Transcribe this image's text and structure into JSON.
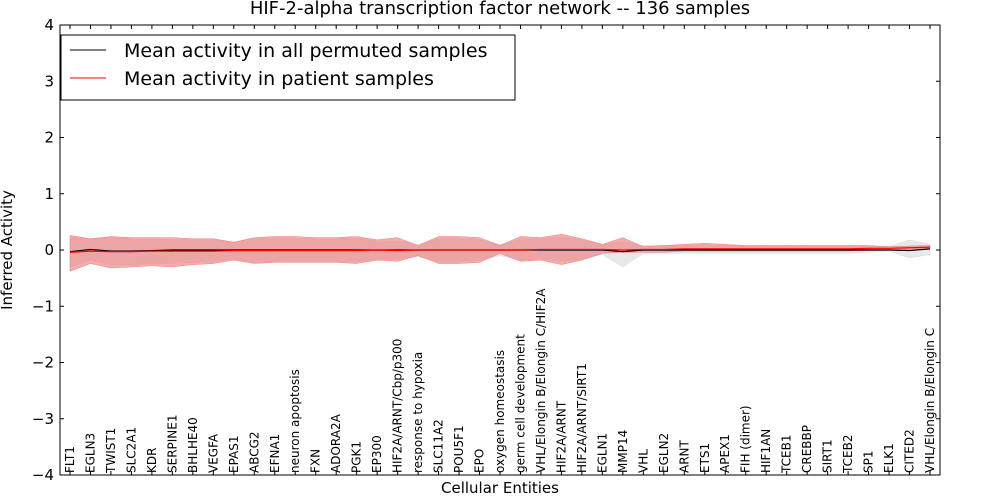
{
  "chart_data": {
    "type": "line",
    "title": "HIF-2-alpha transcription factor network -- 136 samples",
    "xlabel": "Cellular Entities",
    "ylabel": "Inferred Activity",
    "ylim": [
      -4,
      4
    ],
    "yticks": [
      4,
      3,
      2,
      1,
      0,
      -1,
      -2,
      -3,
      -4
    ],
    "ytick_labels": [
      "4",
      "3",
      "2",
      "1",
      "0",
      "−1",
      "−2",
      "−3",
      "−4"
    ],
    "grid": false,
    "legend_position": "top-left",
    "categories": [
      "FLT1",
      "EGLN3",
      "TWIST1",
      "SLC2A1",
      "KDR",
      "SERPINE1",
      "BHLHE40",
      "VEGFA",
      "EPAS1",
      "ABCG2",
      "EFNA1",
      "neuron apoptosis",
      "FXN",
      "ADORA2A",
      "PGK1",
      "EP300",
      "HIF2A/ARNT/Cbp/p300",
      "response to hypoxia",
      "SLC11A2",
      "POU5F1",
      "EPO",
      "oxygen homeostasis",
      "germ cell development",
      "VHL/Elongin B/Elongin C/HIF2A",
      "HIF2A/ARNT",
      "HIF2A/ARNT/SIRT1",
      "EGLN1",
      "MMP14",
      "VHL",
      "EGLN2",
      "ARNT",
      "ETS1",
      "APEX1",
      "FIH (dimer)",
      "HIF1AN",
      "TCEB1",
      "CREBBP",
      "SIRT1",
      "TCEB2",
      "SP1",
      "ELK1",
      "CITED2",
      "VHL/Elongin B/Elongin C"
    ],
    "series": [
      {
        "name": "Mean activity in all permuted samples",
        "color": "#000000",
        "band_color": "#d9d9d9",
        "values": [
          -0.03,
          0.01,
          -0.02,
          -0.02,
          -0.01,
          0.0,
          0.0,
          0.0,
          0.0,
          0.0,
          0.0,
          0.0,
          0.0,
          0.0,
          0.0,
          0.0,
          0.0,
          0.0,
          0.0,
          0.0,
          0.0,
          0.0,
          0.0,
          0.0,
          0.0,
          0.0,
          0.0,
          -0.03,
          0.0,
          0.0,
          0.0,
          0.0,
          0.0,
          0.0,
          0.0,
          0.0,
          0.0,
          0.0,
          0.0,
          0.0,
          0.0,
          -0.01,
          0.02
        ],
        "lower": [
          -0.3,
          -0.18,
          -0.26,
          -0.26,
          -0.24,
          -0.24,
          -0.22,
          -0.2,
          -0.16,
          -0.22,
          -0.2,
          -0.2,
          -0.2,
          -0.2,
          -0.2,
          -0.16,
          -0.16,
          -0.12,
          -0.2,
          -0.2,
          -0.18,
          -0.1,
          -0.18,
          -0.16,
          -0.2,
          -0.16,
          -0.08,
          -0.3,
          -0.06,
          -0.06,
          -0.06,
          -0.06,
          -0.06,
          -0.06,
          -0.06,
          -0.06,
          -0.06,
          -0.06,
          -0.06,
          -0.04,
          -0.02,
          -0.14,
          -0.08
        ],
        "upper": [
          0.22,
          0.2,
          0.22,
          0.2,
          0.2,
          0.18,
          0.18,
          0.18,
          0.14,
          0.2,
          0.2,
          0.2,
          0.2,
          0.2,
          0.2,
          0.16,
          0.16,
          0.1,
          0.2,
          0.2,
          0.18,
          0.1,
          0.18,
          0.2,
          0.22,
          0.18,
          0.1,
          0.14,
          0.08,
          0.08,
          0.08,
          0.08,
          0.08,
          0.08,
          0.08,
          0.08,
          0.08,
          0.08,
          0.08,
          0.06,
          0.06,
          0.18,
          0.1
        ]
      },
      {
        "name": "Mean activity in patient samples",
        "color": "#ff0000",
        "band_color": "#f08080",
        "values": [
          -0.04,
          -0.02,
          -0.03,
          -0.03,
          -0.02,
          -0.02,
          -0.02,
          -0.02,
          -0.01,
          -0.01,
          -0.01,
          -0.01,
          -0.01,
          -0.01,
          -0.01,
          0.0,
          -0.01,
          0.0,
          0.0,
          0.0,
          0.0,
          0.0,
          0.0,
          0.01,
          0.01,
          0.01,
          0.01,
          0.0,
          0.01,
          0.01,
          0.02,
          0.02,
          0.02,
          0.02,
          0.02,
          0.02,
          0.02,
          0.02,
          0.02,
          0.03,
          0.03,
          0.04,
          0.05
        ],
        "lower": [
          -0.38,
          -0.24,
          -0.32,
          -0.3,
          -0.28,
          -0.3,
          -0.26,
          -0.24,
          -0.18,
          -0.24,
          -0.22,
          -0.22,
          -0.22,
          -0.22,
          -0.24,
          -0.18,
          -0.2,
          -0.1,
          -0.24,
          -0.24,
          -0.22,
          -0.06,
          -0.2,
          -0.18,
          -0.26,
          -0.18,
          -0.06,
          -0.04,
          -0.04,
          -0.04,
          -0.02,
          -0.02,
          -0.02,
          -0.02,
          -0.02,
          -0.02,
          -0.02,
          -0.02,
          -0.02,
          -0.01,
          0.0,
          0.01,
          0.02
        ],
        "upper": [
          0.26,
          0.2,
          0.24,
          0.22,
          0.22,
          0.22,
          0.2,
          0.2,
          0.14,
          0.22,
          0.24,
          0.24,
          0.22,
          0.22,
          0.24,
          0.18,
          0.22,
          0.08,
          0.24,
          0.24,
          0.22,
          0.08,
          0.24,
          0.22,
          0.28,
          0.2,
          0.1,
          0.22,
          0.06,
          0.08,
          0.1,
          0.12,
          0.1,
          0.08,
          0.08,
          0.08,
          0.08,
          0.08,
          0.08,
          0.08,
          0.06,
          0.07,
          0.08
        ]
      }
    ]
  }
}
